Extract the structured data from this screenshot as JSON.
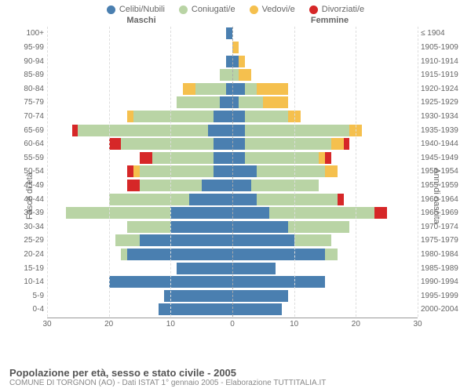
{
  "chart": {
    "type": "bar",
    "orientation": "horizontal",
    "title": "Popolazione per età, sesso e stato civile - 2005",
    "subtitle": "COMUNE DI TORGNON (AO) - Dati ISTAT 1° gennaio 2005 - Elaborazione TUTTITALIA.IT",
    "gender_left": "Maschi",
    "gender_right": "Femmine",
    "y_left_title": "Fasce di età",
    "y_right_title": "Anni di nascita",
    "legend": [
      {
        "label": "Celibi/Nubili",
        "color": "#4a7fb0"
      },
      {
        "label": "Coniugati/e",
        "color": "#b9d4a5"
      },
      {
        "label": "Vedovi/e",
        "color": "#f5c04e"
      },
      {
        "label": "Divorziati/e",
        "color": "#d62728"
      }
    ],
    "colors": {
      "celibi": "#4a7fb0",
      "coniugati": "#b9d4a5",
      "vedovi": "#f5c04e",
      "divorziati": "#d62728",
      "grid": "#dddddd",
      "center": "#aaaaaa",
      "axis": "#999999"
    },
    "x_max": 30,
    "x_ticks": [
      30,
      20,
      10,
      0,
      10,
      20,
      30
    ],
    "rows": [
      {
        "age": "100+",
        "birth": "≤ 1904",
        "m": [
          1,
          0,
          0,
          0
        ],
        "f": [
          0,
          0,
          0,
          0
        ]
      },
      {
        "age": "95-99",
        "birth": "1905-1909",
        "m": [
          0,
          0,
          0,
          0
        ],
        "f": [
          0,
          0,
          1,
          0
        ]
      },
      {
        "age": "90-94",
        "birth": "1910-1914",
        "m": [
          1,
          0,
          0,
          0
        ],
        "f": [
          1,
          0,
          1,
          0
        ]
      },
      {
        "age": "85-89",
        "birth": "1915-1919",
        "m": [
          0,
          2,
          0,
          0
        ],
        "f": [
          0,
          1,
          2,
          0
        ]
      },
      {
        "age": "80-84",
        "birth": "1920-1924",
        "m": [
          1,
          5,
          2,
          0
        ],
        "f": [
          2,
          2,
          5,
          0
        ]
      },
      {
        "age": "75-79",
        "birth": "1925-1929",
        "m": [
          2,
          7,
          0,
          0
        ],
        "f": [
          1,
          4,
          4,
          0
        ]
      },
      {
        "age": "70-74",
        "birth": "1930-1934",
        "m": [
          3,
          13,
          1,
          0
        ],
        "f": [
          2,
          7,
          2,
          0
        ]
      },
      {
        "age": "65-69",
        "birth": "1935-1939",
        "m": [
          4,
          21,
          0,
          1
        ],
        "f": [
          2,
          17,
          2,
          0
        ]
      },
      {
        "age": "60-64",
        "birth": "1940-1944",
        "m": [
          3,
          15,
          0,
          2
        ],
        "f": [
          2,
          14,
          2,
          1
        ]
      },
      {
        "age": "55-59",
        "birth": "1945-1949",
        "m": [
          3,
          10,
          0,
          2
        ],
        "f": [
          2,
          12,
          1,
          1
        ]
      },
      {
        "age": "50-54",
        "birth": "1950-1954",
        "m": [
          3,
          12,
          1,
          1
        ],
        "f": [
          4,
          11,
          2,
          0
        ]
      },
      {
        "age": "45-49",
        "birth": "1955-1959",
        "m": [
          5,
          10,
          0,
          2
        ],
        "f": [
          3,
          11,
          0,
          0
        ]
      },
      {
        "age": "40-44",
        "birth": "1960-1964",
        "m": [
          7,
          13,
          0,
          0
        ],
        "f": [
          4,
          13,
          0,
          1
        ]
      },
      {
        "age": "35-39",
        "birth": "1965-1969",
        "m": [
          10,
          17,
          0,
          0
        ],
        "f": [
          6,
          17,
          0,
          2
        ]
      },
      {
        "age": "30-34",
        "birth": "1970-1974",
        "m": [
          10,
          7,
          0,
          0
        ],
        "f": [
          9,
          10,
          0,
          0
        ]
      },
      {
        "age": "25-29",
        "birth": "1975-1979",
        "m": [
          15,
          4,
          0,
          0
        ],
        "f": [
          10,
          6,
          0,
          0
        ]
      },
      {
        "age": "20-24",
        "birth": "1980-1984",
        "m": [
          17,
          1,
          0,
          0
        ],
        "f": [
          15,
          2,
          0,
          0
        ]
      },
      {
        "age": "15-19",
        "birth": "1985-1989",
        "m": [
          9,
          0,
          0,
          0
        ],
        "f": [
          7,
          0,
          0,
          0
        ]
      },
      {
        "age": "10-14",
        "birth": "1990-1994",
        "m": [
          20,
          0,
          0,
          0
        ],
        "f": [
          15,
          0,
          0,
          0
        ]
      },
      {
        "age": "5-9",
        "birth": "1995-1999",
        "m": [
          11,
          0,
          0,
          0
        ],
        "f": [
          9,
          0,
          0,
          0
        ]
      },
      {
        "age": "0-4",
        "birth": "2000-2004",
        "m": [
          12,
          0,
          0,
          0
        ],
        "f": [
          8,
          0,
          0,
          0
        ]
      }
    ]
  }
}
